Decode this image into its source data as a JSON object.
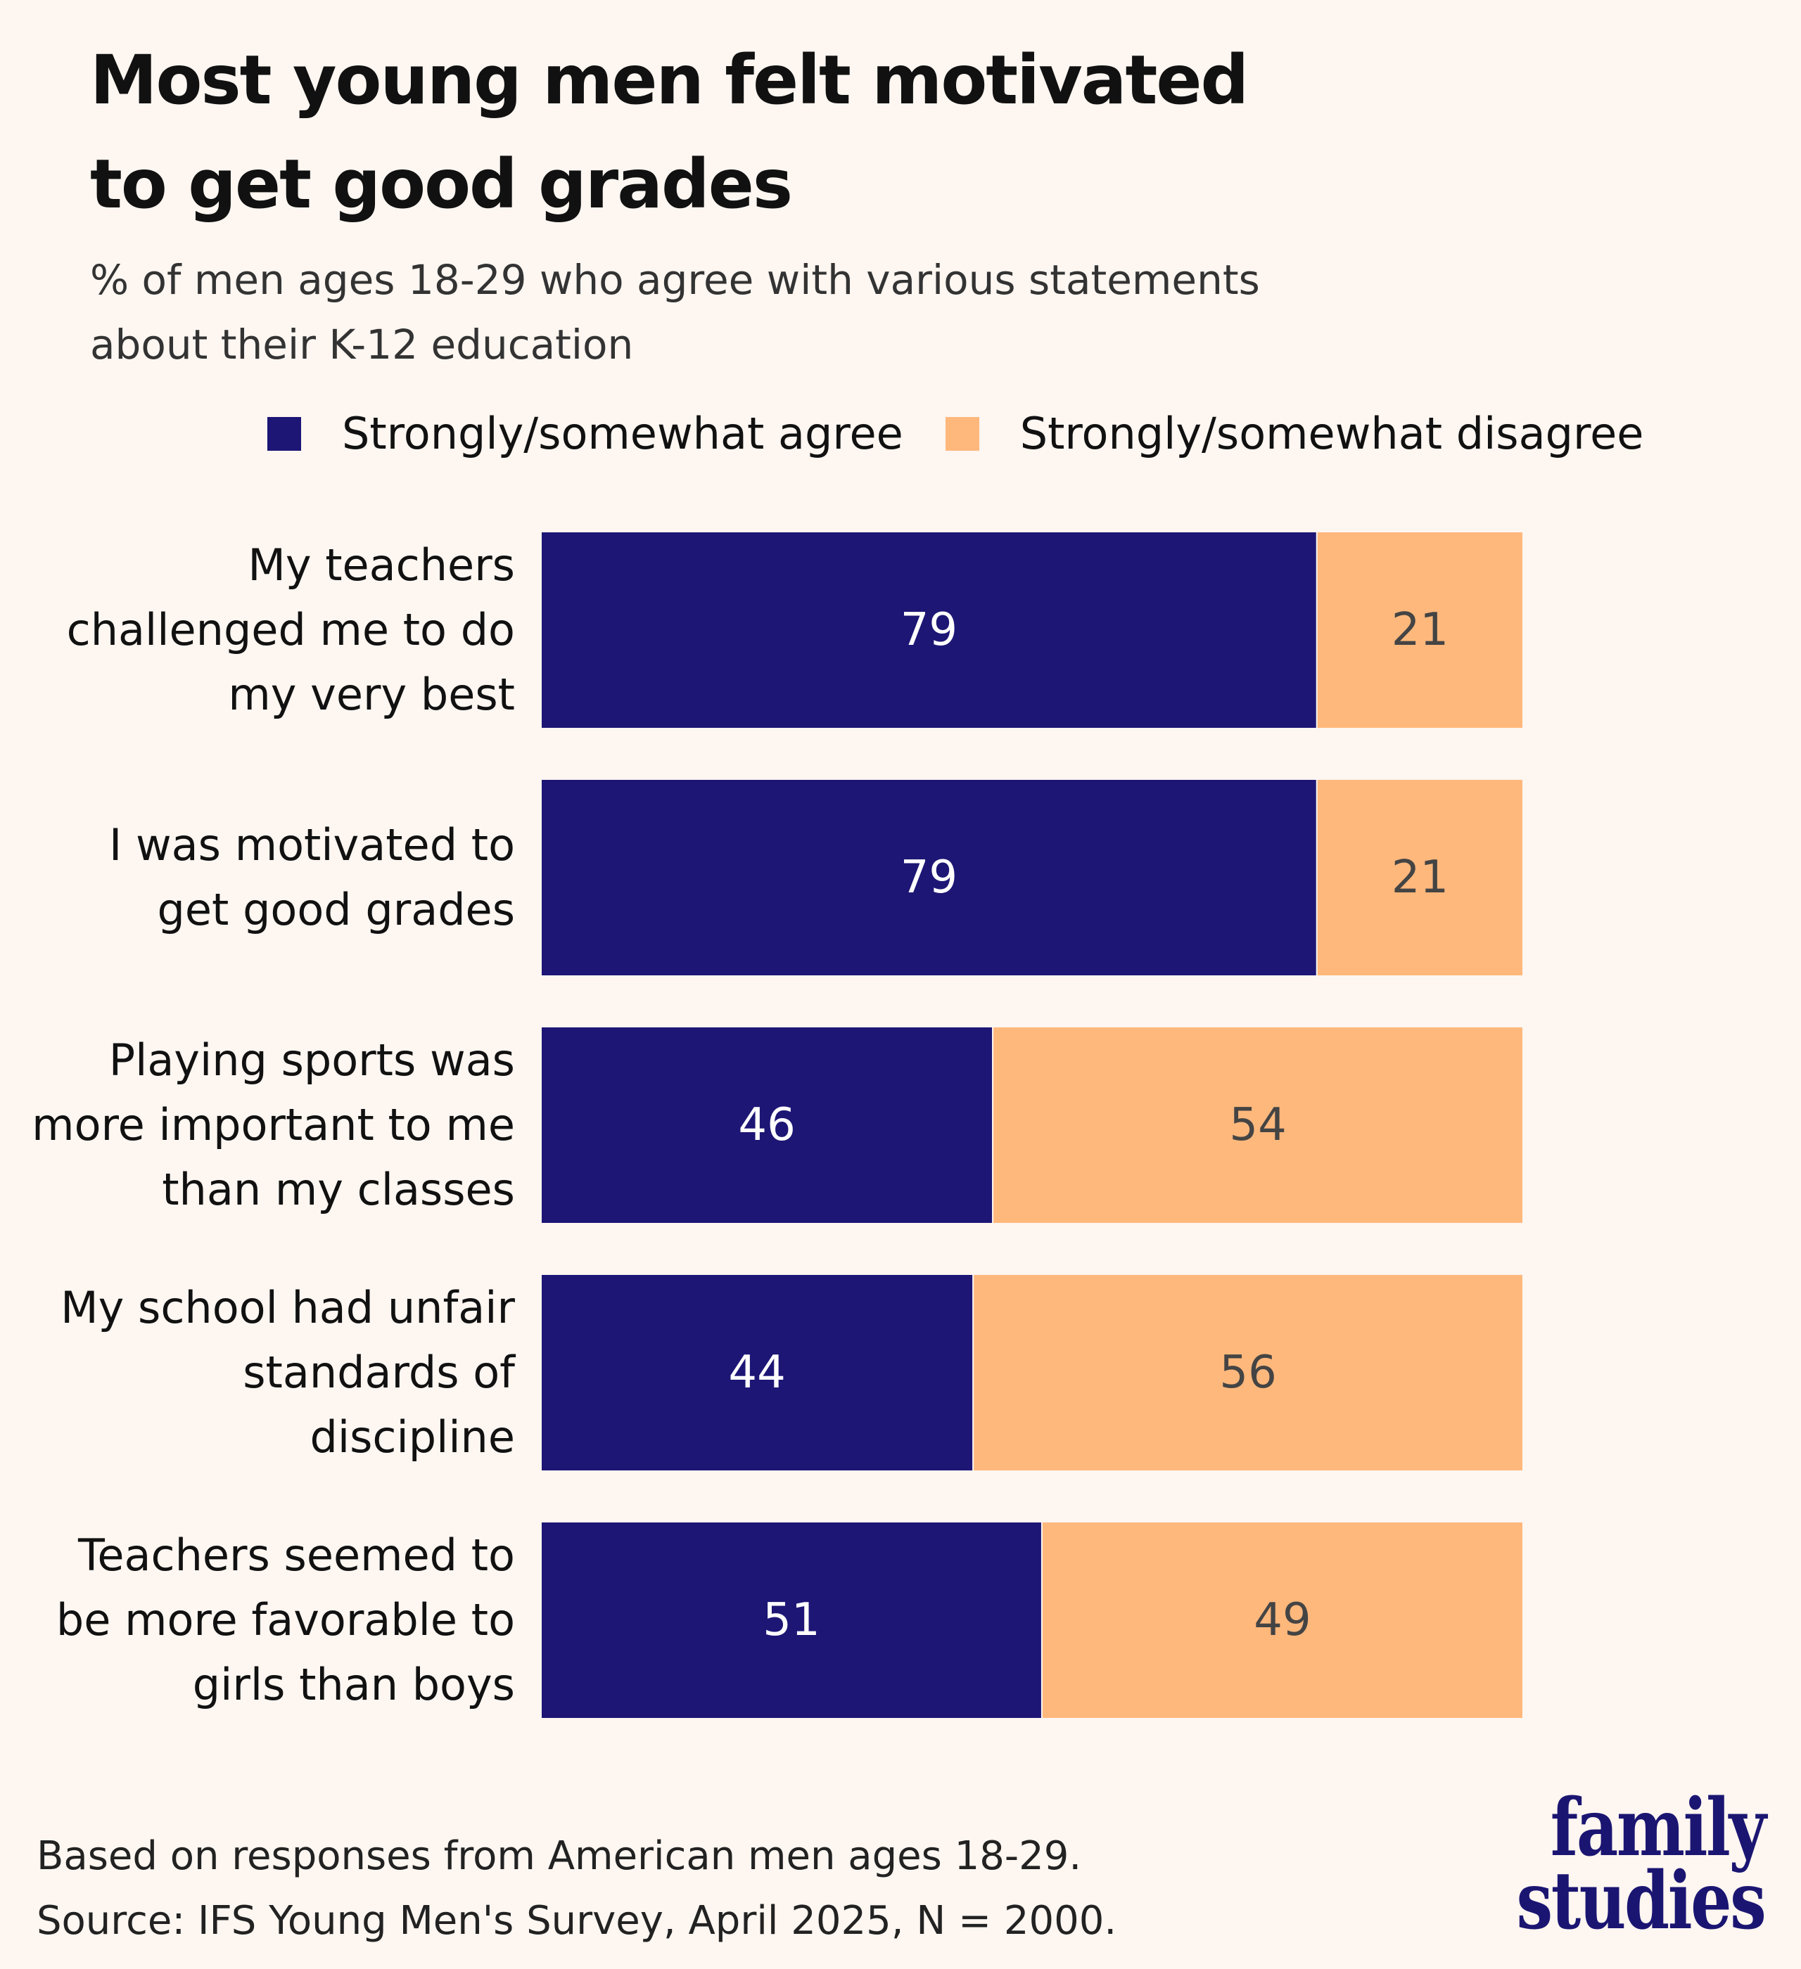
{
  "title_lines": [
    "Most young men felt motivated",
    "to get good grades"
  ],
  "subtitle_lines": [
    "% of men ages 18-29 who agree with various statements",
    "about their K-12 education"
  ],
  "colors": {
    "agree": "#1d1675",
    "disagree": "#ffb87c",
    "background": "#fdf6f1",
    "agree_text": "#ffffff",
    "disagree_text": "#444444"
  },
  "chart_data": {
    "type": "bar",
    "orientation": "horizontal",
    "stacked": true,
    "title": "Most young men felt motivated to get good grades",
    "subtitle": "% of men ages 18-29 who agree with various statements about their K-12 education",
    "categories": [
      "My teachers challenged me to do my very best",
      "I was motivated to get good grades",
      "Playing sports was more important to me than my classes",
      "My school had unfair standards of discipline",
      "Teachers seemed to be more favorable to girls than boys"
    ],
    "category_lines": [
      "My teachers\nchallenged me to do\nmy very best",
      "I was motivated to\nget good grades",
      "Playing sports was\nmore important to me\nthan my classes",
      "My school had unfair\nstandards of\ndiscipline",
      "Teachers seemed to\nbe more favorable to\ngirls than boys"
    ],
    "series": [
      {
        "name": "Strongly/somewhat agree",
        "values": [
          79,
          79,
          46,
          44,
          51
        ]
      },
      {
        "name": "Strongly/somewhat disagree",
        "values": [
          21,
          21,
          54,
          56,
          49
        ]
      }
    ],
    "xlim": [
      0,
      100
    ],
    "xlabel": "",
    "ylabel": "",
    "grid": false,
    "legend": "top"
  },
  "legend": {
    "agree": "Strongly/somewhat agree",
    "disagree": "Strongly/somewhat disagree"
  },
  "footer": {
    "note": "Based on responses from American men ages 18-29.",
    "source": "Source: IFS Young Men's Survey, April 2025, N = 2000."
  },
  "logo": {
    "line1": "family",
    "line2": "studies"
  }
}
